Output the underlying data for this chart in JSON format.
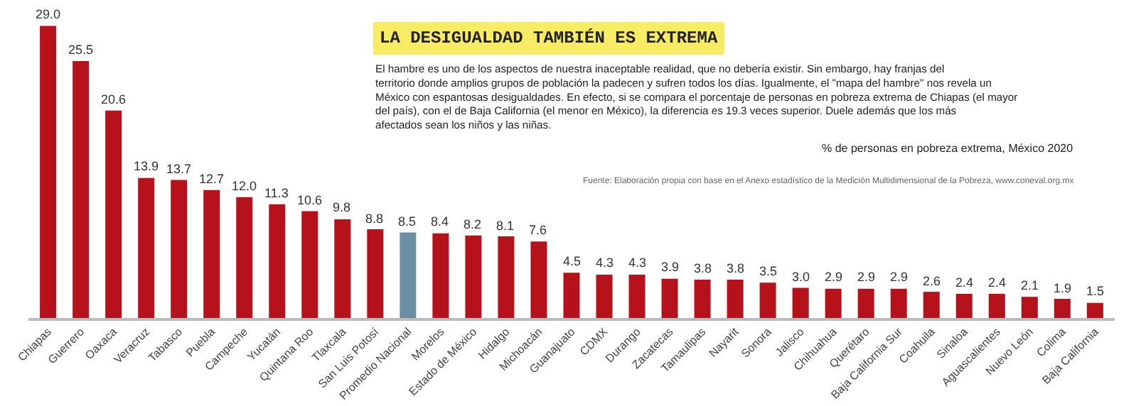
{
  "chart_data": {
    "type": "bar",
    "title": "LA DESIGUALDAD TAMBIÉN ES EXTREMA",
    "subtitle": "El hambre es uno de los aspectos de nuestra inaceptable realidad, que no debería existir. Sin embargo, hay franjas del territorio donde amplios grupos de población la padecen y sufren todos los días. Igualmente, el \"mapa del hambre\" nos revela un México con espantosas desigualdades. En efecto, si se compara el porcentaje de personas en pobreza extrema de Chiapas (el mayor del país), con el de Baja California (el menor en México), la diferencia es 19.3 veces superior. Duele además que los más afectados sean los niños y las niñas.",
    "annotations": [
      "% de personas en pobreza extrema, México 2020",
      "Fuente: Elaboración propia con base en el Anexo estadístico de la Medición Multidimensional de la Pobreza, www.coneval.org.mx"
    ],
    "categories": [
      "Chiapas",
      "Guerrero",
      "Oaxaca",
      "Veracruz",
      "Tabasco",
      "Puebla",
      "Campeche",
      "Yucatán",
      "Quintana Roo",
      "Tlaxcala",
      "San Luis Potosí",
      "Promedio Nacional",
      "Morelos",
      "Estado de México",
      "Hidalgo",
      "Michoacán",
      "Guanajuato",
      "CDMX",
      "Durango",
      "Zacatecas",
      "Tamaulipas",
      "Nayarit",
      "Sonora",
      "Jalisco",
      "Chihuahua",
      "Querétaro",
      "Baja California Sur",
      "Coahuila",
      "Sinaloa",
      "Aguascalientes",
      "Nuevo León",
      "Colima",
      "Baja California"
    ],
    "values": [
      29.0,
      25.5,
      20.6,
      13.9,
      13.7,
      12.7,
      12.0,
      11.3,
      10.6,
      9.8,
      8.8,
      8.5,
      8.4,
      8.2,
      8.1,
      7.6,
      4.5,
      4.3,
      4.3,
      3.9,
      3.8,
      3.8,
      3.5,
      3.0,
      2.9,
      2.9,
      2.9,
      2.6,
      2.4,
      2.4,
      2.1,
      1.9,
      1.5
    ],
    "value_labels": [
      "29.0",
      "25.5",
      "20.6",
      "13.9",
      "13.7",
      "12.7",
      "12.0",
      "11.3",
      "10.6",
      "9.8",
      "8.8",
      "8.5",
      "8.4",
      "8.2",
      "8.1",
      "7.6",
      "4.5",
      "4.3",
      "4.3",
      "3.9",
      "3.8",
      "3.8",
      "3.5",
      "3.0",
      "2.9",
      "2.9",
      "2.9",
      "2.6",
      "2.4",
      "2.4",
      "2.1",
      "1.9",
      "1.5"
    ],
    "colors": [
      "#b5121b",
      "#b5121b",
      "#b5121b",
      "#b5121b",
      "#b5121b",
      "#b5121b",
      "#b5121b",
      "#b5121b",
      "#b5121b",
      "#b5121b",
      "#b5121b",
      "#6a8fa0",
      "#b5121b",
      "#b5121b",
      "#b5121b",
      "#b5121b",
      "#b5121b",
      "#b5121b",
      "#b5121b",
      "#b5121b",
      "#b5121b",
      "#b5121b",
      "#b5121b",
      "#b5121b",
      "#b5121b",
      "#b5121b",
      "#b5121b",
      "#b5121b",
      "#b5121b",
      "#b5121b",
      "#b5121b",
      "#b5121b",
      "#b5121b"
    ],
    "grid": false
  }
}
